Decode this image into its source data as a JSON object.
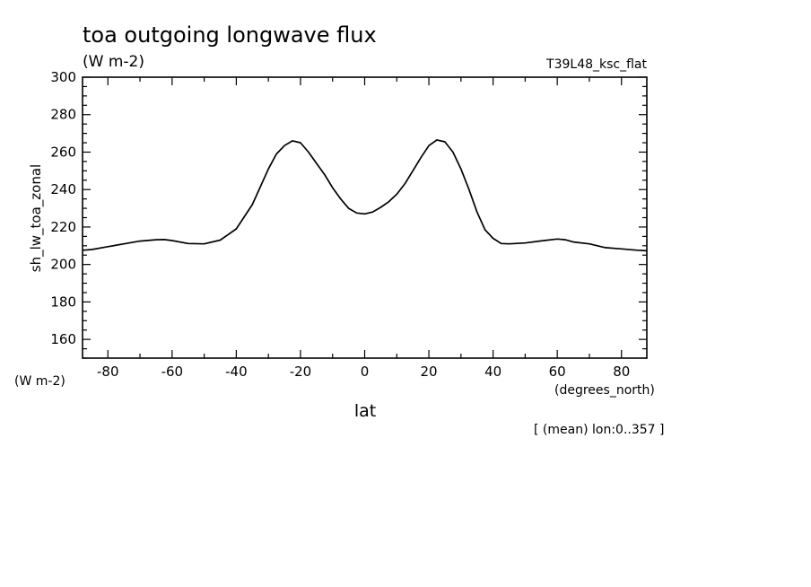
{
  "chart_data": {
    "type": "line",
    "title": "toa outgoing longwave flux",
    "subtitle": "(W m-2)",
    "run_label": "T39L48_ksc_flat",
    "xlabel": "lat",
    "x_units": "(degrees_north)",
    "ylabel": "sh_lw_toa_zonal",
    "y_units": "(W m-2)",
    "footnote": "[ (mean) lon:0..357 ]",
    "xlim": [
      -87.9,
      87.9
    ],
    "ylim": [
      150,
      300
    ],
    "x_ticks": [
      -80,
      -60,
      -40,
      -20,
      0,
      20,
      40,
      60,
      80
    ],
    "x_tick_labels": [
      "-80",
      "-60",
      "-40",
      "-20",
      "0",
      "20",
      "40",
      "60",
      "80"
    ],
    "y_ticks": [
      160,
      180,
      200,
      220,
      240,
      260,
      280,
      300
    ],
    "y_tick_labels": [
      "160",
      "180",
      "200",
      "220",
      "240",
      "260",
      "280",
      "300"
    ],
    "grid": false,
    "series": [
      {
        "x": [
          -87.9,
          -85,
          -80,
          -75,
          -70,
          -65,
          -62.5,
          -60,
          -55,
          -50,
          -45,
          -40,
          -35,
          -30,
          -27.5,
          -25,
          -22.5,
          -20,
          -17.5,
          -15,
          -12.5,
          -10,
          -7.5,
          -5,
          -2.5,
          0,
          2.5,
          5,
          7.5,
          10,
          12.5,
          15,
          17.5,
          20,
          22.5,
          25,
          27.5,
          30,
          32.5,
          35,
          37.5,
          40,
          42.5,
          45,
          50,
          55,
          60,
          62.5,
          65,
          70,
          75,
          80,
          85,
          87.9
        ],
        "y": [
          207.6,
          208,
          209.5,
          211,
          212.5,
          213.2,
          213.3,
          212.8,
          211.2,
          211,
          213,
          219,
          232,
          251,
          259,
          263.5,
          266,
          265,
          260,
          254,
          248,
          241,
          235,
          230,
          227.5,
          227,
          228,
          230.5,
          233.5,
          237.5,
          243,
          250,
          257,
          263.5,
          266.5,
          265.5,
          260,
          251,
          240,
          228,
          218.5,
          214,
          211.2,
          211,
          211.5,
          212.6,
          213.6,
          213.2,
          212,
          211,
          209,
          208.3,
          207.6,
          207.3
        ]
      }
    ]
  }
}
